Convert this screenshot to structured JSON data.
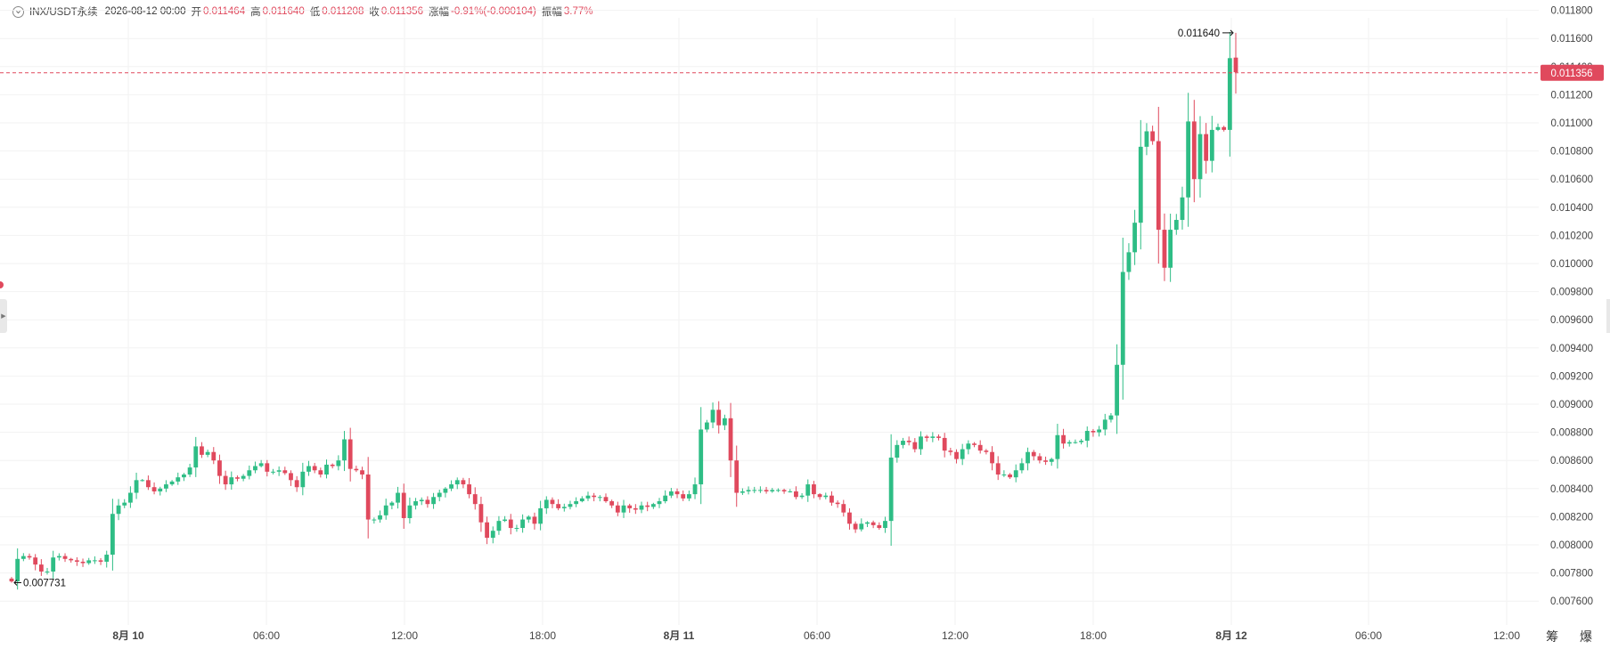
{
  "header": {
    "symbol": "INX/USDT永续",
    "datetime": "2026-08-12 00:00",
    "open_label": "开",
    "open_value": "0.011464",
    "high_label": "高",
    "high_value": "0.011640",
    "low_label": "低",
    "low_value": "0.011208",
    "close_label": "收",
    "close_value": "0.011356",
    "change_label": "涨幅",
    "change_value": "-0.91%(-0.000104)",
    "amplitude_label": "振幅",
    "amplitude_value": "3.77%"
  },
  "footer": {
    "tools_label": "筹 爆"
  },
  "colors": {
    "up": "#2ebd85",
    "down": "#e0495d",
    "grid": "#f2f2f2",
    "axis_text": "#444444"
  },
  "chart_data": {
    "type": "candlestick",
    "title": "",
    "timeframe": "1h (approx., 20-min bars)",
    "ylim": [
      0.0075,
      0.0119
    ],
    "y_ticks": [
      "0.007600",
      "0.007800",
      "0.008000",
      "0.008200",
      "0.008400",
      "0.008600",
      "0.008800",
      "0.009000",
      "0.009200",
      "0.009400",
      "0.009600",
      "0.009800",
      "0.010000",
      "0.010200",
      "0.010400",
      "0.010600",
      "0.010800",
      "0.011000",
      "0.011200",
      "0.011400",
      "0.011600",
      "0.011800"
    ],
    "x_ticks": [
      "8月 10",
      "06:00",
      "12:00",
      "18:00",
      "8月 11",
      "06:00",
      "12:00",
      "18:00",
      "8月 12",
      "06:00",
      "12:00"
    ],
    "bold_x_ticks": [
      "8月 10",
      "8月 11",
      "8月 12"
    ],
    "last_price": "0.011356",
    "high_marker": "0.011640",
    "low_marker": "0.007731",
    "close_series": [
      0.00774,
      0.0079,
      0.00792,
      0.00791,
      0.00786,
      0.00781,
      0.00781,
      0.00791,
      0.00792,
      0.0079,
      0.00789,
      0.00788,
      0.00787,
      0.00789,
      0.00789,
      0.00788,
      0.00793,
      0.00822,
      0.00828,
      0.0083,
      0.00837,
      0.00846,
      0.00846,
      0.00841,
      0.00838,
      0.0084,
      0.00843,
      0.00845,
      0.00848,
      0.0085,
      0.00855,
      0.0087,
      0.00864,
      0.00866,
      0.0086,
      0.00849,
      0.00843,
      0.00848,
      0.00847,
      0.00849,
      0.00853,
      0.00856,
      0.00858,
      0.00852,
      0.00852,
      0.00853,
      0.00851,
      0.00846,
      0.00841,
      0.00852,
      0.00856,
      0.00853,
      0.0085,
      0.00857,
      0.00856,
      0.0086,
      0.00875,
      0.00854,
      0.00853,
      0.0085,
      0.00818,
      0.00818,
      0.00821,
      0.00828,
      0.0083,
      0.00837,
      0.00819,
      0.00828,
      0.00831,
      0.00832,
      0.00829,
      0.00834,
      0.00837,
      0.0084,
      0.00843,
      0.00846,
      0.00843,
      0.00836,
      0.00829,
      0.00816,
      0.00805,
      0.0081,
      0.00817,
      0.00818,
      0.00812,
      0.00812,
      0.00818,
      0.0082,
      0.00815,
      0.00826,
      0.00832,
      0.00829,
      0.00826,
      0.00827,
      0.00829,
      0.00831,
      0.00833,
      0.00835,
      0.00834,
      0.00834,
      0.00831,
      0.00828,
      0.00823,
      0.00828,
      0.00826,
      0.00825,
      0.00828,
      0.00827,
      0.00829,
      0.00831,
      0.00835,
      0.00838,
      0.00836,
      0.00833,
      0.00836,
      0.00843,
      0.00882,
      0.00887,
      0.00896,
      0.00885,
      0.0089,
      0.0086,
      0.00837,
      0.00838,
      0.00839,
      0.00839,
      0.00839,
      0.00838,
      0.00839,
      0.00839,
      0.00838,
      0.00838,
      0.00834,
      0.00835,
      0.00843,
      0.00836,
      0.00834,
      0.00835,
      0.0083,
      0.00829,
      0.00823,
      0.00815,
      0.00811,
      0.00815,
      0.00816,
      0.00814,
      0.00812,
      0.00817,
      0.00862,
      0.00871,
      0.00874,
      0.00873,
      0.00868,
      0.00877,
      0.00876,
      0.00877,
      0.00876,
      0.00867,
      0.00866,
      0.00861,
      0.00868,
      0.00872,
      0.00871,
      0.00867,
      0.00866,
      0.00858,
      0.0085,
      0.0085,
      0.00848,
      0.00853,
      0.00858,
      0.00866,
      0.00863,
      0.0086,
      0.00859,
      0.00861,
      0.00878,
      0.00872,
      0.00873,
      0.00873,
      0.00874,
      0.00881,
      0.0088,
      0.00882,
      0.00889,
      0.00892,
      0.00928,
      0.00994,
      0.01008,
      0.01029,
      0.01083,
      0.01094,
      0.01087,
      0.01024,
      0.00997,
      0.01024,
      0.01031,
      0.01047,
      0.01101,
      0.0106,
      0.01092,
      0.01073,
      0.01095,
      0.01097,
      0.01095,
      0.01146,
      0.01136
    ]
  }
}
